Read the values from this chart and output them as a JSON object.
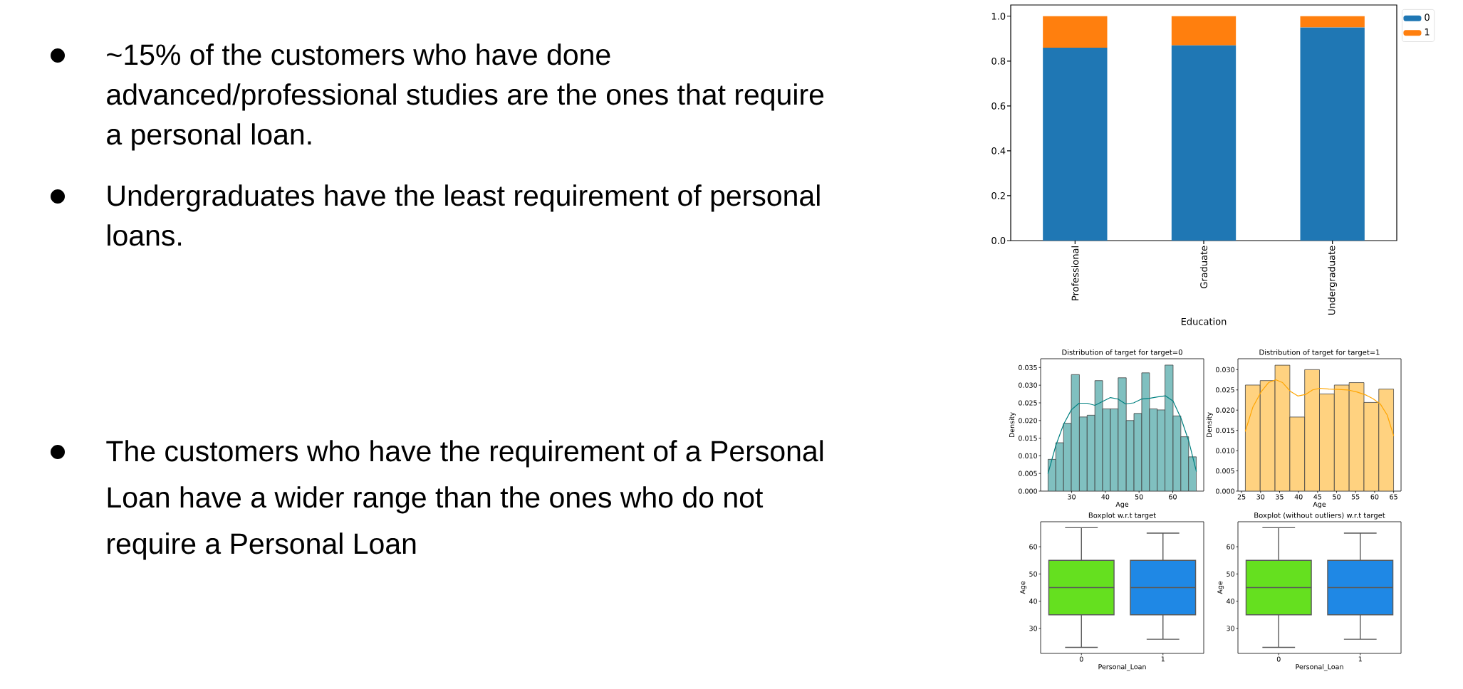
{
  "chart_data": [
    {
      "type": "other",
      "annotations": [
        "~15% of the customers who have done advanced/professional studies are the ones that require a personal loan.",
        "Undergraduates have the least requirement of personal loans.",
        "The customers who have the requirement of a Personal Loan have a wider range than the ones who do not require a Personal Loan"
      ]
    },
    {
      "type": "bar",
      "stacked": true,
      "xlabel": "Education",
      "categories": [
        "Professional",
        "Graduate",
        "Undergraduate"
      ],
      "series": [
        {
          "name": "0",
          "color": "#1f77b4",
          "values": [
            0.86,
            0.87,
            0.95
          ]
        },
        {
          "name": "1",
          "color": "#ff7f0e",
          "values": [
            0.14,
            0.13,
            0.05
          ]
        }
      ],
      "ylim": [
        0,
        1.05
      ],
      "yticks": [
        {
          "value": 0,
          "label": "0.0"
        },
        0.2,
        0.4,
        0.6,
        0.8,
        {
          "value": 1,
          "label": "1.0"
        }
      ],
      "legend": "top right"
    },
    {
      "type": "histogram",
      "title": "Distribution of target for target=0",
      "xlabel": "Age",
      "ylabel": "Density",
      "series": [
        {
          "type": "histogram",
          "color": "#80c0c0",
          "bins": [
            23,
            25.3,
            27.6,
            29.9,
            32.3,
            34.6,
            36.9,
            39.2,
            41.5,
            43.8,
            46.2,
            48.5,
            50.8,
            53.1,
            55.4,
            57.7,
            60.1,
            62.4,
            64.7,
            67
          ],
          "values": [
            0.009,
            0.0137,
            0.0192,
            0.033,
            0.021,
            0.0215,
            0.0313,
            0.0233,
            0.0233,
            0.0321,
            0.02,
            0.022,
            0.0335,
            0.0233,
            0.023,
            0.0357,
            0.0213,
            0.0154,
            0.0097
          ]
        },
        {
          "type": "line",
          "color": "#008080",
          "x": [
            23,
            25.3,
            27.6,
            29.9,
            32.2,
            34.6,
            36.9,
            39.2,
            41.5,
            43.7,
            46,
            48.4,
            50.8,
            53.1,
            55.5,
            57.8,
            60.1,
            62.5,
            64.8,
            67
          ],
          "values": [
            0.005,
            0.0129,
            0.0189,
            0.023,
            0.0249,
            0.0249,
            0.0243,
            0.0254,
            0.0265,
            0.0261,
            0.0247,
            0.025,
            0.0261,
            0.0263,
            0.0267,
            0.027,
            0.0255,
            0.0205,
            0.014,
            0.0056
          ]
        }
      ],
      "xlim": [
        20.8,
        69.2
      ],
      "xticks": [
        30,
        40,
        50,
        60
      ],
      "ylim": [
        0,
        0.0375
      ],
      "yticks": [
        {
          "value": 0,
          "label": "0.000"
        },
        0.005,
        {
          "value": 0.01,
          "label": "0.010"
        },
        0.015,
        {
          "value": 0.02,
          "label": "0.020"
        },
        0.025,
        {
          "value": 0.03,
          "label": "0.030"
        },
        0.035
      ]
    },
    {
      "type": "histogram",
      "title": "Distribution of target for target=1",
      "xlabel": "Age",
      "ylabel": "Density",
      "series": [
        {
          "type": "histogram",
          "color": "#ffd280",
          "bins": [
            26,
            29.9,
            33.8,
            37.7,
            41.6,
            45.5,
            49.4,
            53.3,
            57.2,
            61.1,
            65
          ],
          "values": [
            0.0262,
            0.0273,
            0.0311,
            0.0183,
            0.03,
            0.024,
            0.0262,
            0.0268,
            0.0219,
            0.0252
          ]
        },
        {
          "type": "line",
          "color": "#ffa500",
          "x": [
            26,
            28,
            30.2,
            32.1,
            34,
            35.8,
            37.9,
            39.8,
            41.9,
            43.7,
            45.6,
            48,
            50.5,
            52.9,
            55.3,
            57.8,
            59.6,
            61.5,
            63.3,
            65
          ],
          "values": [
            0.0148,
            0.0208,
            0.0246,
            0.0268,
            0.0275,
            0.0268,
            0.0246,
            0.0235,
            0.0239,
            0.025,
            0.0254,
            0.0252,
            0.0251,
            0.025,
            0.0245,
            0.0237,
            0.0228,
            0.0215,
            0.0188,
            0.0137
          ]
        }
      ],
      "xlim": [
        24.05,
        66.95
      ],
      "xticks": [
        25,
        30,
        35,
        40,
        45,
        50,
        55,
        60,
        65
      ],
      "ylim": [
        0,
        0.0327
      ],
      "yticks": [
        {
          "value": 0,
          "label": "0.000"
        },
        0.005,
        {
          "value": 0.01,
          "label": "0.010"
        },
        0.015,
        {
          "value": 0.02,
          "label": "0.020"
        },
        0.025,
        {
          "value": 0.03,
          "label": "0.030"
        }
      ]
    },
    {
      "type": "box",
      "title": "Boxplot w.r.t target",
      "xlabel": "Personal_Loan",
      "ylabel": "Age",
      "categories": [
        "0",
        "1"
      ],
      "boxes": [
        {
          "low": 23,
          "q1": 35,
          "median": 45,
          "q3": 55,
          "high": 67
        },
        {
          "low": 26,
          "q1": 35,
          "median": 45,
          "q3": 55,
          "high": 65
        }
      ],
      "colors": [
        "#65e01f",
        "#1f88e5"
      ],
      "ylim": [
        20.8,
        69.2
      ],
      "yticks": [
        30,
        40,
        50,
        60
      ]
    },
    {
      "type": "box",
      "title": "Boxplot (without outliers) w.r.t target",
      "xlabel": "Personal_Loan",
      "ylabel": "Age",
      "categories": [
        "0",
        "1"
      ],
      "boxes": [
        {
          "low": 23,
          "q1": 35,
          "median": 45,
          "q3": 55,
          "high": 67
        },
        {
          "low": 26,
          "q1": 35,
          "median": 45,
          "q3": 55,
          "high": 65
        }
      ],
      "colors": [
        "#65e01f",
        "#1f88e5"
      ],
      "ylim": [
        20.8,
        69.2
      ],
      "yticks": [
        30,
        40,
        50,
        60
      ]
    }
  ]
}
